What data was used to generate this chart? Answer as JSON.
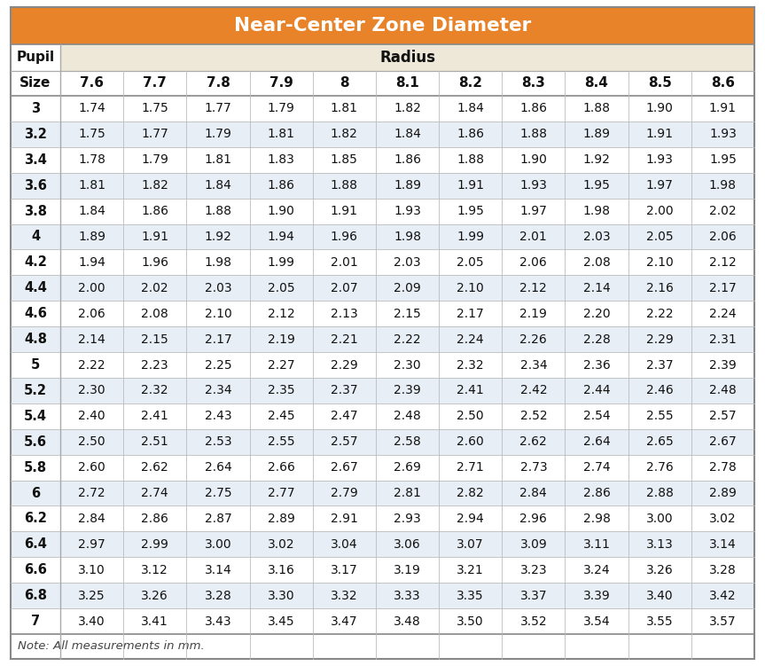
{
  "title": "Near-Center Zone Diameter",
  "title_bg_color": "#E8832A",
  "title_text_color": "#FFFFFF",
  "radius_header_bg": "#EDE8D8",
  "pupil_header_bg": "#FFFFFF",
  "col_header_bg": "#FFFFFF",
  "row_odd_bg": "#FFFFFF",
  "row_even_bg": "#E8EEF5",
  "note_bg": "#FFFFFF",
  "border_color": "#AAAAAA",
  "text_dark": "#111111",
  "note_text": "#444444",
  "pupil_sizes": [
    "3",
    "3.2",
    "3.4",
    "3.6",
    "3.8",
    "4",
    "4.2",
    "4.4",
    "4.6",
    "4.8",
    "5",
    "5.2",
    "5.4",
    "5.6",
    "5.8",
    "6",
    "6.2",
    "6.4",
    "6.6",
    "6.8",
    "7"
  ],
  "radius_cols": [
    "7.6",
    "7.7",
    "7.8",
    "7.9",
    "8",
    "8.1",
    "8.2",
    "8.3",
    "8.4",
    "8.5",
    "8.6"
  ],
  "table_data": [
    [
      "1.74",
      "1.75",
      "1.77",
      "1.79",
      "1.81",
      "1.82",
      "1.84",
      "1.86",
      "1.88",
      "1.90",
      "1.91"
    ],
    [
      "1.75",
      "1.77",
      "1.79",
      "1.81",
      "1.82",
      "1.84",
      "1.86",
      "1.88",
      "1.89",
      "1.91",
      "1.93"
    ],
    [
      "1.78",
      "1.79",
      "1.81",
      "1.83",
      "1.85",
      "1.86",
      "1.88",
      "1.90",
      "1.92",
      "1.93",
      "1.95"
    ],
    [
      "1.81",
      "1.82",
      "1.84",
      "1.86",
      "1.88",
      "1.89",
      "1.91",
      "1.93",
      "1.95",
      "1.97",
      "1.98"
    ],
    [
      "1.84",
      "1.86",
      "1.88",
      "1.90",
      "1.91",
      "1.93",
      "1.95",
      "1.97",
      "1.98",
      "2.00",
      "2.02"
    ],
    [
      "1.89",
      "1.91",
      "1.92",
      "1.94",
      "1.96",
      "1.98",
      "1.99",
      "2.01",
      "2.03",
      "2.05",
      "2.06"
    ],
    [
      "1.94",
      "1.96",
      "1.98",
      "1.99",
      "2.01",
      "2.03",
      "2.05",
      "2.06",
      "2.08",
      "2.10",
      "2.12"
    ],
    [
      "2.00",
      "2.02",
      "2.03",
      "2.05",
      "2.07",
      "2.09",
      "2.10",
      "2.12",
      "2.14",
      "2.16",
      "2.17"
    ],
    [
      "2.06",
      "2.08",
      "2.10",
      "2.12",
      "2.13",
      "2.15",
      "2.17",
      "2.19",
      "2.20",
      "2.22",
      "2.24"
    ],
    [
      "2.14",
      "2.15",
      "2.17",
      "2.19",
      "2.21",
      "2.22",
      "2.24",
      "2.26",
      "2.28",
      "2.29",
      "2.31"
    ],
    [
      "2.22",
      "2.23",
      "2.25",
      "2.27",
      "2.29",
      "2.30",
      "2.32",
      "2.34",
      "2.36",
      "2.37",
      "2.39"
    ],
    [
      "2.30",
      "2.32",
      "2.34",
      "2.35",
      "2.37",
      "2.39",
      "2.41",
      "2.42",
      "2.44",
      "2.46",
      "2.48"
    ],
    [
      "2.40",
      "2.41",
      "2.43",
      "2.45",
      "2.47",
      "2.48",
      "2.50",
      "2.52",
      "2.54",
      "2.55",
      "2.57"
    ],
    [
      "2.50",
      "2.51",
      "2.53",
      "2.55",
      "2.57",
      "2.58",
      "2.60",
      "2.62",
      "2.64",
      "2.65",
      "2.67"
    ],
    [
      "2.60",
      "2.62",
      "2.64",
      "2.66",
      "2.67",
      "2.69",
      "2.71",
      "2.73",
      "2.74",
      "2.76",
      "2.78"
    ],
    [
      "2.72",
      "2.74",
      "2.75",
      "2.77",
      "2.79",
      "2.81",
      "2.82",
      "2.84",
      "2.86",
      "2.88",
      "2.89"
    ],
    [
      "2.84",
      "2.86",
      "2.87",
      "2.89",
      "2.91",
      "2.93",
      "2.94",
      "2.96",
      "2.98",
      "3.00",
      "3.02"
    ],
    [
      "2.97",
      "2.99",
      "3.00",
      "3.02",
      "3.04",
      "3.06",
      "3.07",
      "3.09",
      "3.11",
      "3.13",
      "3.14"
    ],
    [
      "3.10",
      "3.12",
      "3.14",
      "3.16",
      "3.17",
      "3.19",
      "3.21",
      "3.23",
      "3.24",
      "3.26",
      "3.28"
    ],
    [
      "3.25",
      "3.26",
      "3.28",
      "3.30",
      "3.32",
      "3.33",
      "3.35",
      "3.37",
      "3.39",
      "3.40",
      "3.42"
    ],
    [
      "3.40",
      "3.41",
      "3.43",
      "3.45",
      "3.47",
      "3.48",
      "3.50",
      "3.52",
      "3.54",
      "3.55",
      "3.57"
    ]
  ],
  "note": "Note: All measurements in mm.",
  "fig_w": 8.63,
  "fig_h": 7.51,
  "dpi": 100
}
